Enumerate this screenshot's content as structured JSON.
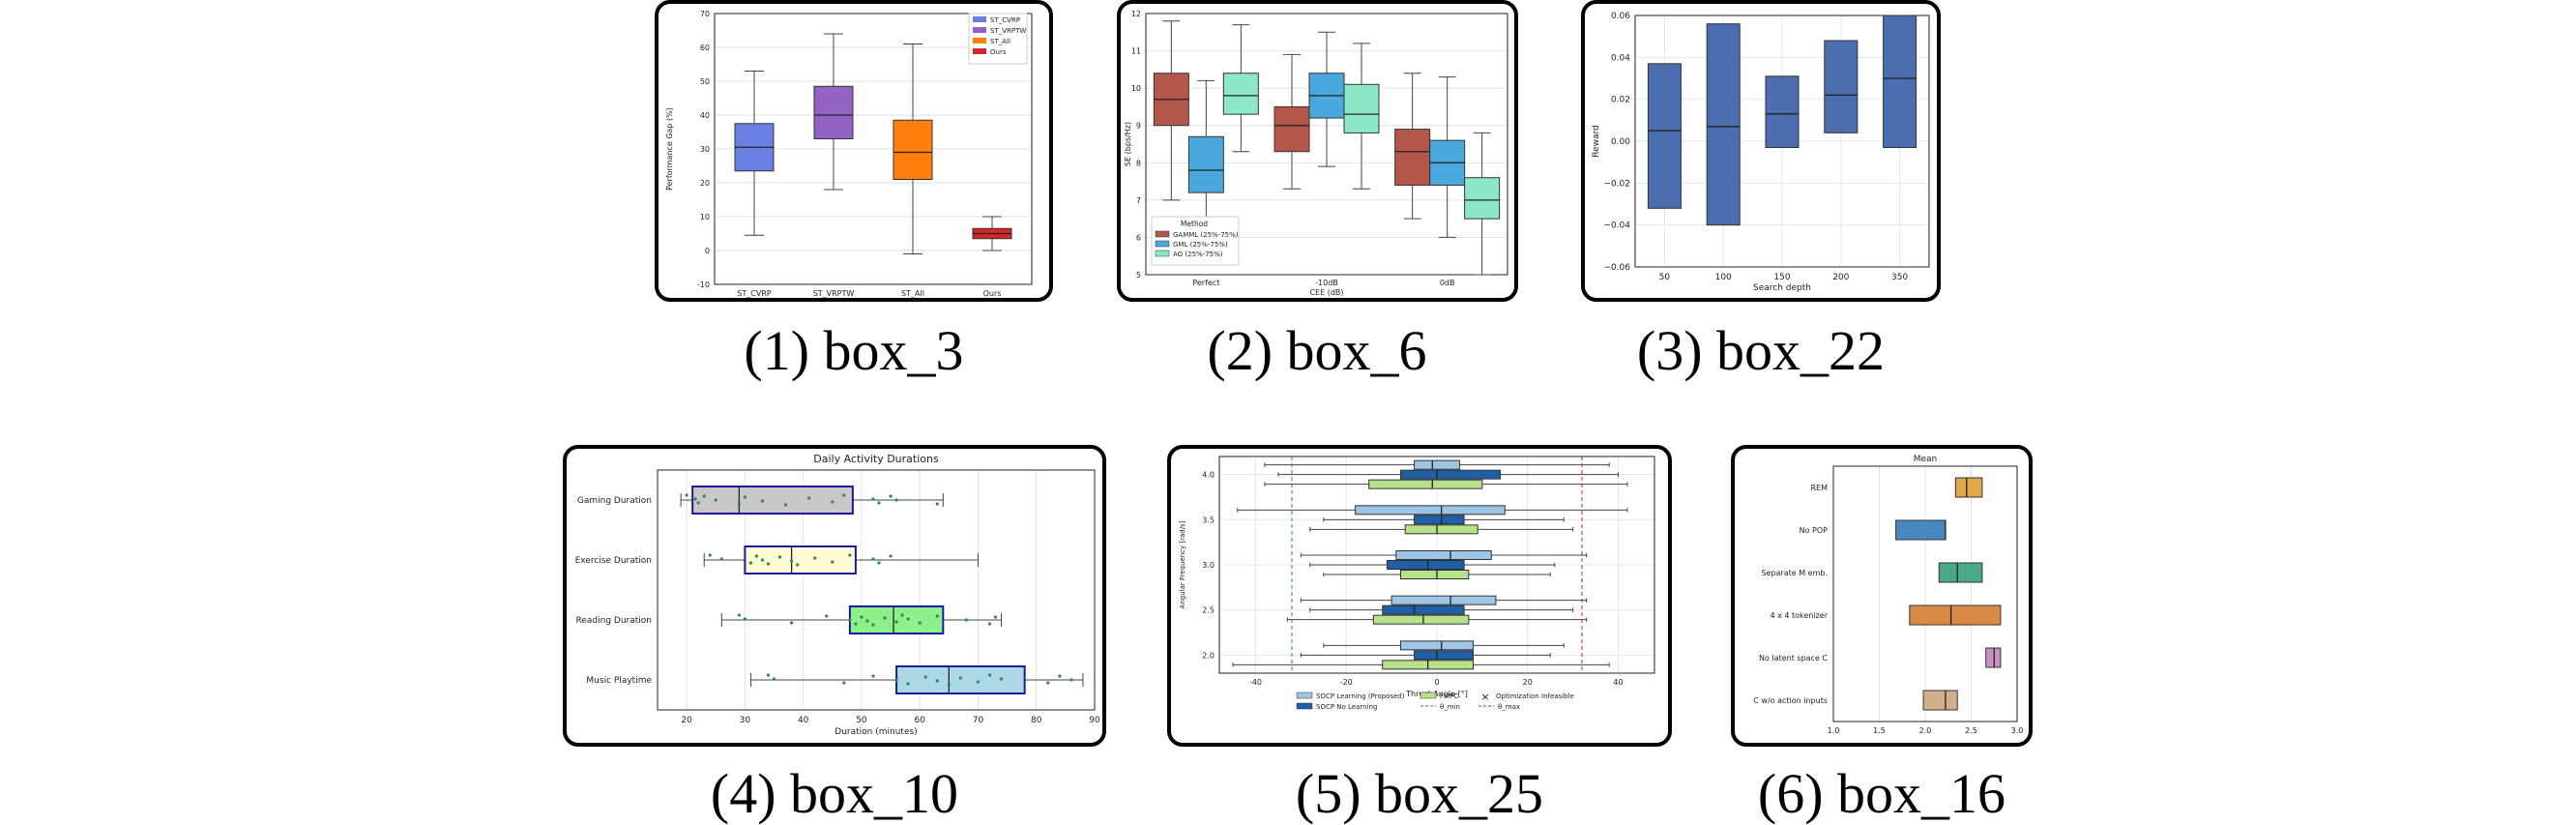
{
  "captions": [
    "(1) box_3",
    "(2) box_6",
    "(3) box_22",
    "(4) box_10",
    "(5) box_25",
    "(6) box_16"
  ],
  "chart_data": [
    {
      "id": "box_3",
      "type": "box",
      "orientation": "vertical",
      "title": "",
      "xlabel": "",
      "ylabel": "Performance Gap (%)",
      "ylim": [
        -10,
        70
      ],
      "yticks": [
        -10,
        0,
        10,
        20,
        30,
        40,
        50,
        60,
        70
      ],
      "grid": "y",
      "legend": {
        "placement": "top-right",
        "entries": [
          "ST_CVRP",
          "ST_VRPTW",
          "ST_All",
          "Ours"
        ]
      },
      "categories": [
        "ST_CVRP",
        "ST_VRPTW",
        "ST_All",
        "Ours"
      ],
      "colors": [
        "#6a7fe3",
        "#9263c4",
        "#ff7f0e",
        "#d62728"
      ],
      "boxes": [
        {
          "whislo": 4.5,
          "q1": 23.5,
          "med": 30.5,
          "q3": 37.5,
          "whishi": 53
        },
        {
          "whislo": 18,
          "q1": 33,
          "med": 40,
          "q3": 48.5,
          "whishi": 64
        },
        {
          "whislo": -1,
          "q1": 21,
          "med": 29,
          "q3": 38.5,
          "whishi": 61
        },
        {
          "whislo": 0,
          "q1": 3.5,
          "med": 5,
          "q3": 6.5,
          "whishi": 10
        }
      ]
    },
    {
      "id": "box_6",
      "type": "box",
      "orientation": "vertical",
      "title": "",
      "xlabel": "CEE (dB)",
      "ylabel": "SE (bps/Hz)",
      "ylim": [
        5,
        12
      ],
      "yticks": [
        5,
        6,
        7,
        8,
        9,
        10,
        11,
        12
      ],
      "grid": "y",
      "legend": {
        "placement": "bottom-left",
        "title": "Method",
        "entries": [
          "GAMML (25%-75%)",
          "GML (25%-75%)",
          "AO (25%-75%)"
        ]
      },
      "categories": [
        "Perfect",
        "-10dB",
        "0dB"
      ],
      "colors": [
        "#b5564a",
        "#4aa8dc",
        "#8de8c8"
      ],
      "groups": [
        [
          {
            "whislo": 7.0,
            "q1": 9.0,
            "med": 9.7,
            "q3": 10.4,
            "whishi": 11.8
          },
          {
            "whislo": 6.0,
            "q1": 7.2,
            "med": 7.8,
            "q3": 8.7,
            "whishi": 10.2
          },
          {
            "whislo": 8.3,
            "q1": 9.3,
            "med": 9.8,
            "q3": 10.4,
            "whishi": 11.7
          }
        ],
        [
          {
            "whislo": 7.3,
            "q1": 8.3,
            "med": 9.0,
            "q3": 9.5,
            "whishi": 10.9
          },
          {
            "whislo": 7.9,
            "q1": 9.2,
            "med": 9.8,
            "q3": 10.4,
            "whishi": 11.5
          },
          {
            "whislo": 7.3,
            "q1": 8.8,
            "med": 9.3,
            "q3": 10.1,
            "whishi": 11.2
          }
        ],
        [
          {
            "whislo": 6.5,
            "q1": 7.4,
            "med": 8.3,
            "q3": 8.9,
            "whishi": 10.4
          },
          {
            "whislo": 6.0,
            "q1": 7.4,
            "med": 8.0,
            "q3": 8.6,
            "whishi": 10.3
          },
          {
            "whislo": 5.0,
            "q1": 6.5,
            "med": 7.0,
            "q3": 7.6,
            "whishi": 8.8
          }
        ]
      ]
    },
    {
      "id": "box_22",
      "type": "box",
      "orientation": "vertical",
      "title": "",
      "xlabel": "Search depth",
      "ylabel": "Reward",
      "ylim": [
        -0.06,
        0.06
      ],
      "yticks": [
        -0.06,
        -0.04,
        -0.02,
        0.0,
        0.02,
        0.04,
        0.06
      ],
      "ytick_labels": [
        "−0.06",
        "−0.04",
        "−0.02",
        "0.00",
        "0.02",
        "0.04",
        "0.06"
      ],
      "grid": "both",
      "categories": [
        "50",
        "100",
        "150",
        "200",
        "350"
      ],
      "color": "#4a6eb0",
      "boxes": [
        {
          "q1": -0.032,
          "med": 0.005,
          "q3": 0.037
        },
        {
          "q1": -0.04,
          "med": 0.007,
          "q3": 0.056
        },
        {
          "q1": -0.003,
          "med": 0.013,
          "q3": 0.031
        },
        {
          "q1": 0.004,
          "med": 0.022,
          "q3": 0.048
        },
        {
          "q1": -0.003,
          "med": 0.03,
          "q3": 0.06
        }
      ]
    },
    {
      "id": "box_10",
      "type": "box",
      "orientation": "horizontal",
      "title": "Daily Activity Durations",
      "xlabel": "Duration (minutes)",
      "ylabel": "",
      "xlim": [
        15,
        90
      ],
      "xticks": [
        20,
        30,
        40,
        50,
        60,
        70,
        80,
        90
      ],
      "grid": "x",
      "categories": [
        "Gaming Duration",
        "Exercise Duration",
        "Reading Duration",
        "Music Playtime"
      ],
      "colors": [
        "#c8c8c8",
        "#fffbd2",
        "#8ef08a",
        "#add8e6"
      ],
      "boxes": [
        {
          "whislo": 19,
          "q1": 21,
          "med": 29,
          "q3": 48.5,
          "whishi": 64
        },
        {
          "whislo": 23,
          "q1": 30,
          "med": 38,
          "q3": 49,
          "whishi": 70
        },
        {
          "whislo": 26,
          "q1": 48,
          "med": 55.5,
          "q3": 64,
          "whishi": 74
        },
        {
          "whislo": 31,
          "q1": 56,
          "med": 65,
          "q3": 78,
          "whishi": 88
        }
      ],
      "points": [
        [
          20,
          21.5,
          22,
          23,
          25,
          29,
          30,
          33,
          37,
          41,
          45,
          47,
          52,
          53,
          55,
          56,
          63
        ],
        [
          24,
          26,
          31,
          32,
          33,
          34,
          36,
          38,
          39,
          42,
          45,
          48,
          52,
          53,
          55
        ],
        [
          29,
          30,
          38,
          44,
          48,
          49,
          50,
          51,
          52,
          54,
          56,
          57,
          58,
          60,
          63,
          68,
          72,
          73
        ],
        [
          34,
          35,
          47,
          52,
          56,
          58,
          61,
          63,
          65,
          67,
          70,
          72,
          74,
          82,
          84,
          86
        ]
      ]
    },
    {
      "id": "box_25",
      "type": "box",
      "orientation": "horizontal",
      "title": "",
      "xlabel": "Thrust Angle [°]",
      "ylabel": "Angular Frequency [rad/s]",
      "xlim": [
        -48,
        48
      ],
      "ylim": [
        1.8,
        4.2
      ],
      "xticks": [
        -40,
        -20,
        0,
        20,
        40
      ],
      "yticks": [
        2.0,
        2.5,
        3.0,
        3.5,
        4.0
      ],
      "grid": "both",
      "thresholds": {
        "lower": -32,
        "upper": 32
      },
      "legend": {
        "placement": "bottom-outside",
        "entries": [
          "SOCP Learning (Proposed)",
          "SOCP No Learning",
          "FMPC",
          "θ_min",
          "θ_max",
          "Optimization Infeasible"
        ]
      },
      "series_colors": [
        "#9ec5e5",
        "#1f5fa8",
        "#b8e28a"
      ],
      "groups": [
        {
          "y": 2.0,
          "boxes": [
            {
              "whislo": -25,
              "q1": -8,
              "med": 1,
              "q3": 8,
              "whishi": 28
            },
            {
              "whislo": -30,
              "q1": -5,
              "med": 0,
              "q3": 8,
              "whishi": 25
            },
            {
              "whislo": -45,
              "q1": -12,
              "med": -2,
              "q3": 8,
              "whishi": 38
            }
          ]
        },
        {
          "y": 2.5,
          "boxes": [
            {
              "whislo": -30,
              "q1": -10,
              "med": 3,
              "q3": 13,
              "whishi": 33
            },
            {
              "whislo": -28,
              "q1": -12,
              "med": -5,
              "q3": 6,
              "whishi": 30
            },
            {
              "whislo": -33,
              "q1": -14,
              "med": -3,
              "q3": 7,
              "whishi": 33
            }
          ]
        },
        {
          "y": 3.0,
          "boxes": [
            {
              "whislo": -30,
              "q1": -9,
              "med": 3,
              "q3": 12,
              "whishi": 33
            },
            {
              "whislo": -28,
              "q1": -11,
              "med": -2,
              "q3": 6,
              "whishi": 26
            },
            {
              "whislo": -25,
              "q1": -8,
              "med": 0,
              "q3": 7,
              "whishi": 25
            }
          ]
        },
        {
          "y": 3.5,
          "boxes": [
            {
              "whislo": -44,
              "q1": -18,
              "med": 1,
              "q3": 15,
              "whishi": 42
            },
            {
              "whislo": -25,
              "q1": -5,
              "med": 1,
              "q3": 6,
              "whishi": 28
            },
            {
              "whislo": -28,
              "q1": -7,
              "med": 0,
              "q3": 9,
              "whishi": 30
            }
          ]
        },
        {
          "y": 4.0,
          "boxes": [
            {
              "whislo": -38,
              "q1": -5,
              "med": -1,
              "q3": 5,
              "whishi": 38
            },
            {
              "whislo": -35,
              "q1": -8,
              "med": 0,
              "q3": 14,
              "whishi": 40
            },
            {
              "whislo": -38,
              "q1": -15,
              "med": -1,
              "q3": 10,
              "whishi": 42
            }
          ]
        }
      ]
    },
    {
      "id": "box_16",
      "type": "box",
      "orientation": "horizontal",
      "title": "Mean",
      "xlabel": "",
      "ylabel": "",
      "xlim": [
        1.0,
        3.0
      ],
      "xticks": [
        1.0,
        1.5,
        2.0,
        2.5,
        3.0
      ],
      "grid": "x",
      "categories": [
        "REM",
        "No POP",
        "Separate M emb.",
        "4 x 4 tokenizer",
        "No latent space C",
        "C w/o action inputs"
      ],
      "colors": [
        "#e0a84a",
        "#4a86c0",
        "#4aa886",
        "#d98a45",
        "#c990c6",
        "#d2b08e"
      ],
      "boxes": [
        {
          "q1": 2.33,
          "med": 2.45,
          "q3": 2.62
        },
        {
          "q1": 1.68,
          "med": 2.22,
          "q3": 2.22
        },
        {
          "q1": 2.15,
          "med": 2.35,
          "q3": 2.62
        },
        {
          "q1": 1.83,
          "med": 2.28,
          "q3": 2.82
        },
        {
          "q1": 2.66,
          "med": 2.75,
          "q3": 2.82
        },
        {
          "q1": 1.98,
          "med": 2.22,
          "q3": 2.35
        }
      ]
    }
  ]
}
